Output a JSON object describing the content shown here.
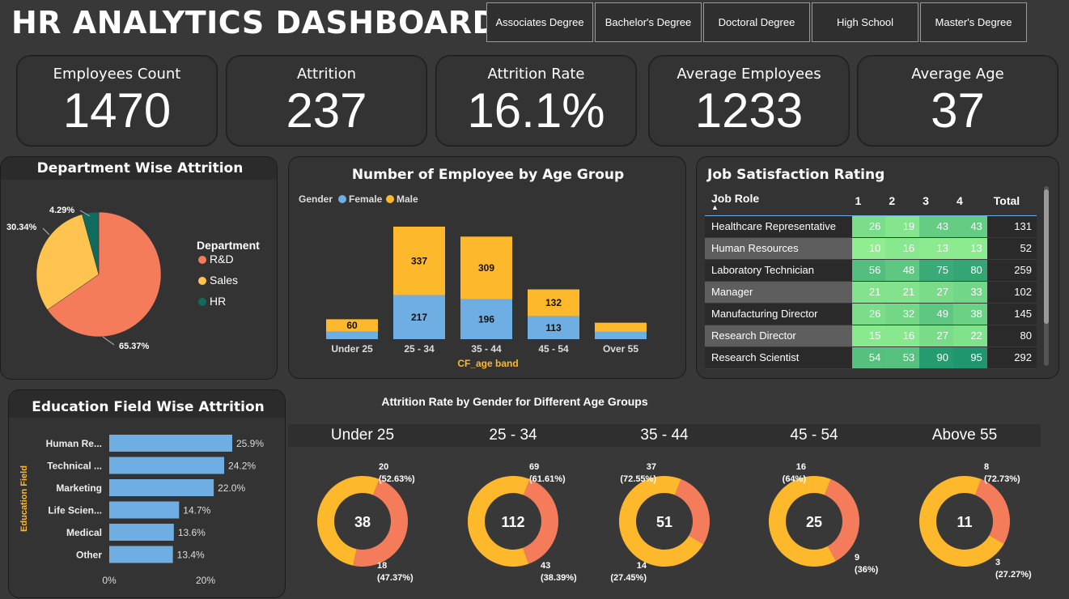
{
  "title": "HR ANALYTICS DASHBOARD",
  "slicer": [
    "Associates Degree",
    "Bachelor's Degree",
    "Doctoral Degree",
    "High School",
    "Master's Degree"
  ],
  "kpis": [
    {
      "label": "Employees Count",
      "value": "1470"
    },
    {
      "label": "Attrition",
      "value": "237"
    },
    {
      "label": "Attrition Rate",
      "value": "16.1%"
    },
    {
      "label": "Average Employees",
      "value": "1233"
    },
    {
      "label": "Average Age",
      "value": "37"
    }
  ],
  "colors": {
    "rd": "#F47C5A",
    "sales": "#FEC44F",
    "hr": "#0F6B5E",
    "female": "#6FAEE3",
    "male": "#FDB92B",
    "bar": "#6FAEE3",
    "donut_a": "#FDB92B",
    "donut_b": "#F47C5A"
  },
  "dept": {
    "title": "Department Wise Attrition",
    "legend_title": "Department",
    "chart_data": {
      "type": "pie",
      "labels": [
        "R&D",
        "Sales",
        "HR"
      ],
      "values": [
        65.37,
        30.34,
        4.29
      ],
      "data_labels": [
        "65.37%",
        "30.34%",
        "4.29%"
      ]
    }
  },
  "age": {
    "title": "Number of Employee by Age Group",
    "legend_title": "Gender",
    "xlabel": "CF_age band",
    "chart_data": {
      "type": "bar",
      "stacked": true,
      "categories": [
        "Under 25",
        "25 - 34",
        "35 - 44",
        "45 - 54",
        "Over 55"
      ],
      "series": [
        {
          "name": "Female",
          "values": [
            38,
            217,
            196,
            113,
            36
          ],
          "labels": [
            "",
            "217",
            "196",
            "113",
            ""
          ]
        },
        {
          "name": "Male",
          "values": [
            60,
            337,
            309,
            132,
            45
          ],
          "labels": [
            "60",
            "337",
            "309",
            "132",
            ""
          ]
        }
      ]
    }
  },
  "job": {
    "title": "Job Satisfaction Rating",
    "headers": [
      "Job Role",
      "1",
      "2",
      "3",
      "4",
      "Total"
    ],
    "rows": [
      {
        "role": "Healthcare Representative",
        "v": [
          "26",
          "19",
          "43",
          "43"
        ],
        "total": "131"
      },
      {
        "role": "Human Resources",
        "v": [
          "10",
          "16",
          "13",
          "13"
        ],
        "total": "52"
      },
      {
        "role": "Laboratory Technician",
        "v": [
          "56",
          "48",
          "75",
          "80"
        ],
        "total": "259"
      },
      {
        "role": "Manager",
        "v": [
          "21",
          "21",
          "27",
          "33"
        ],
        "total": "102"
      },
      {
        "role": "Manufacturing Director",
        "v": [
          "26",
          "32",
          "49",
          "38"
        ],
        "total": "145"
      },
      {
        "role": "Research Director",
        "v": [
          "15",
          "16",
          "27",
          "22"
        ],
        "total": "80"
      },
      {
        "role": "Research Scientist",
        "v": [
          "54",
          "53",
          "90",
          "95"
        ],
        "total": "292"
      }
    ]
  },
  "edu": {
    "title": "Education Field Wise Attrition",
    "ylabel": "Education Field",
    "chart_data": {
      "type": "bar",
      "orientation": "horizontal",
      "categories": [
        "Human Re...",
        "Technical ...",
        "Marketing",
        "Life Scien...",
        "Medical",
        "Other"
      ],
      "values": [
        25.9,
        24.2,
        22.0,
        14.7,
        13.6,
        13.4
      ],
      "data_labels": [
        "25.9%",
        "24.2%",
        "22.0%",
        "14.7%",
        "13.6%",
        "13.4%"
      ],
      "xticks": [
        "0%",
        "20%"
      ],
      "xlim": [
        0,
        40
      ]
    }
  },
  "gender": {
    "title": "Attrition Rate by Gender for Different Age Groups",
    "chart_data": [
      {
        "type": "pie",
        "group": "Under 25",
        "total": "38",
        "values": [
          20,
          18
        ],
        "labels_a": [
          "20",
          "(52.63%)"
        ],
        "labels_b": [
          "18",
          "(47.37%)"
        ]
      },
      {
        "type": "pie",
        "group": "25 - 34",
        "total": "112",
        "values": [
          69,
          43
        ],
        "labels_a": [
          "69",
          "(61.61%)"
        ],
        "labels_b": [
          "43",
          "(38.39%)"
        ]
      },
      {
        "type": "pie",
        "group": "35 - 44",
        "total": "51",
        "values": [
          37,
          14
        ],
        "labels_a": [
          "37",
          "(72.55%)"
        ],
        "labels_b": [
          "14",
          "(27.45%)"
        ]
      },
      {
        "type": "pie",
        "group": "45 - 54",
        "total": "25",
        "values": [
          16,
          9
        ],
        "labels_a": [
          "16",
          "(64%)"
        ],
        "labels_b": [
          "9",
          "(36%)"
        ]
      },
      {
        "type": "pie",
        "group": "Above 55",
        "total": "11",
        "values": [
          8,
          3
        ],
        "labels_a": [
          "8",
          "(72.73%)"
        ],
        "labels_b": [
          "3",
          "(27.27%)"
        ]
      }
    ]
  }
}
